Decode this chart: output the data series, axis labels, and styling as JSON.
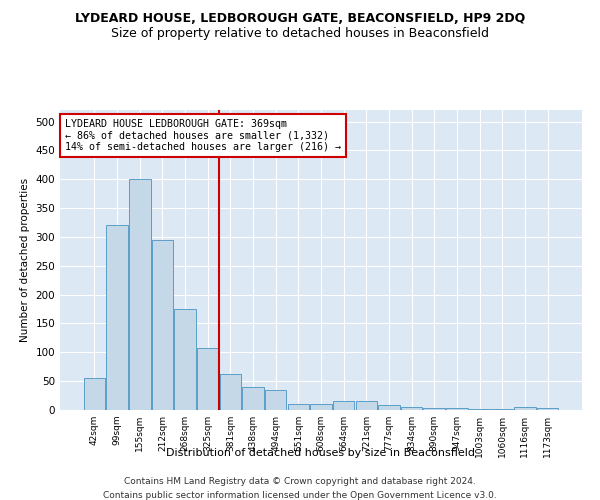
{
  "title": "LYDEARD HOUSE, LEDBOROUGH GATE, BEACONSFIELD, HP9 2DQ",
  "subtitle": "Size of property relative to detached houses in Beaconsfield",
  "xlabel": "Distribution of detached houses by size in Beaconsfield",
  "ylabel": "Number of detached properties",
  "categories": [
    "42sqm",
    "99sqm",
    "155sqm",
    "212sqm",
    "268sqm",
    "325sqm",
    "381sqm",
    "438sqm",
    "494sqm",
    "551sqm",
    "608sqm",
    "664sqm",
    "721sqm",
    "777sqm",
    "834sqm",
    "890sqm",
    "947sqm",
    "1003sqm",
    "1060sqm",
    "1116sqm",
    "1173sqm"
  ],
  "values": [
    55,
    320,
    400,
    295,
    175,
    107,
    63,
    40,
    35,
    10,
    10,
    15,
    15,
    8,
    5,
    4,
    3,
    2,
    1,
    5,
    3
  ],
  "bar_color": "#c5d8e8",
  "bar_edge_color": "#5a9ec9",
  "vline_x_index": 6,
  "vline_color": "#cc0000",
  "annotation_text": "LYDEARD HOUSE LEDBOROUGH GATE: 369sqm\n← 86% of detached houses are smaller (1,332)\n14% of semi-detached houses are larger (216) →",
  "annotation_box_color": "#ffffff",
  "annotation_box_edge": "#cc0000",
  "ylim": [
    0,
    520
  ],
  "yticks": [
    0,
    50,
    100,
    150,
    200,
    250,
    300,
    350,
    400,
    450,
    500
  ],
  "background_color": "#dce9f5",
  "footer_line1": "Contains HM Land Registry data © Crown copyright and database right 2024.",
  "footer_line2": "Contains public sector information licensed under the Open Government Licence v3.0.",
  "title_fontsize": 9,
  "subtitle_fontsize": 9
}
